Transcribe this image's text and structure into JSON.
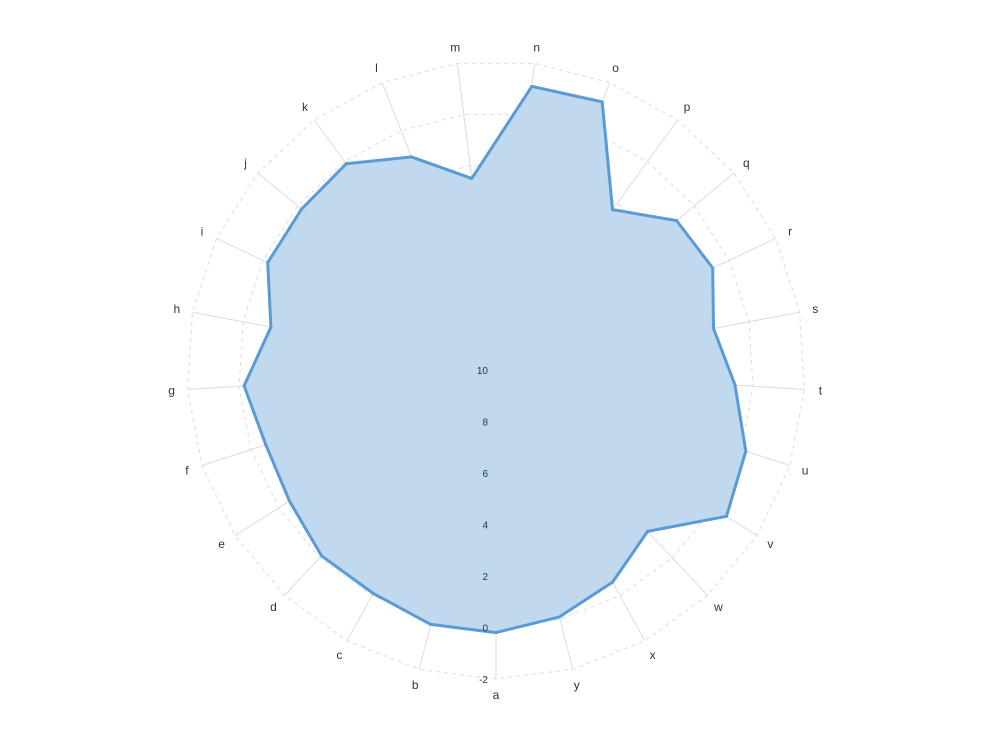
{
  "chart_data": {
    "type": "radar",
    "categories": [
      "a",
      "b",
      "c",
      "d",
      "e",
      "f",
      "g",
      "h",
      "i",
      "j",
      "k",
      "l",
      "m",
      "n",
      "o",
      "p",
      "q",
      "r",
      "s",
      "t",
      "u",
      "v",
      "w",
      "x",
      "y"
    ],
    "series": [
      {
        "values": [
          -0.2,
          -0.2,
          0.1,
          0.1,
          0.5,
          0.6,
          0.2,
          1.1,
          0.2,
          0.2,
          0.1,
          1.1,
          2.5,
          -1.1,
          -1.2,
          2.3,
          0.9,
          0.7,
          1.4,
          0.7,
          -0.2,
          -0.6,
          1.4,
          0.6,
          0.1
        ],
        "color": "#5b9bd5",
        "fill": "#bdd7ee"
      }
    ],
    "ticks": [
      -2,
      0,
      2,
      4,
      6,
      8,
      10
    ],
    "rlim": [
      -2,
      10
    ],
    "radial_axis_reversed": true,
    "grid": true,
    "grid_style": "dashed"
  }
}
